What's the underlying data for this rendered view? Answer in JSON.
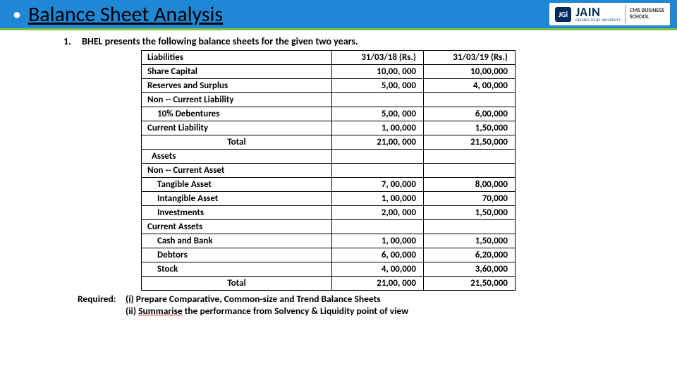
{
  "header": {
    "bullet": "•",
    "title": "Balance Sheet Analysis",
    "logo": {
      "jgi": "JGi",
      "brand": "JAIN",
      "sub": "DEEMED-TO-BE UNIVERSITY",
      "cms1": "CMS BUSINESS",
      "cms2": "SCHOOL"
    }
  },
  "question": {
    "number": "1.",
    "text": "BHEL presents the following balance sheets for the given two years."
  },
  "table": {
    "columns": {
      "c1": "Liabilities",
      "c2": "31/03/18 (Rs.)",
      "c3": "31/03/19 (Rs.)"
    },
    "rows": [
      {
        "label": "Share Capital",
        "v1": "10,00, 000",
        "v2": "10,00,000",
        "bold": true
      },
      {
        "label": "Reserves and Surplus",
        "v1": "5,00, 000",
        "v2": "4, 00,000",
        "bold": true
      },
      {
        "label": "Non -- Current Liability",
        "v1": "",
        "v2": "",
        "bold": true
      },
      {
        "label": "10% Debentures",
        "v1": "5,00, 000",
        "v2": "6,00,000",
        "bold": true,
        "indent": 1
      },
      {
        "label": "Current Liability",
        "v1": "1, 00,000",
        "v2": "1,50,000",
        "bold": true
      },
      {
        "label": "Total",
        "v1": "21,00, 000",
        "v2": "21,50,000",
        "bold": true,
        "center": true
      },
      {
        "label": "Assets",
        "v1": "",
        "v2": "",
        "bold": true,
        "indent": 0.5
      },
      {
        "label": "Non -- Current Asset",
        "v1": "",
        "v2": "",
        "bold": true
      },
      {
        "label": "Tangible Asset",
        "v1": "7, 00,000",
        "v2": "8,00,000",
        "bold": true,
        "indent": 1
      },
      {
        "label": "Intangible Asset",
        "v1": "1, 00,000",
        "v2": "70,000",
        "bold": true,
        "indent": 1
      },
      {
        "label": "Investments",
        "v1": "2,00, 000",
        "v2": "1,50,000",
        "bold": true,
        "indent": 1
      },
      {
        "label": "Current Assets",
        "v1": "",
        "v2": "",
        "bold": true
      },
      {
        "label": "Cash and Bank",
        "v1": "1, 00,000",
        "v2": "1,50,000",
        "bold": true,
        "indent": 1
      },
      {
        "label": "Debtors",
        "v1": "6, 00,000",
        "v2": "6,20,000",
        "bold": true,
        "indent": 1
      },
      {
        "label": "Stock",
        "v1": "4, 00,000",
        "v2": "3,60,000",
        "bold": true,
        "indent": 1
      },
      {
        "label": "Total",
        "v1": "21,00, 000",
        "v2": "21,50,000",
        "bold": true,
        "center": true
      }
    ]
  },
  "required": {
    "label": "Required:",
    "i_num": "(i)",
    "i_text": " Prepare Comparative, Common-size and Trend Balance Sheets",
    "ii_num": "(ii) ",
    "ii_word": "Summarise",
    "ii_text": " the performance from Solvency & Liquidity point of view"
  }
}
